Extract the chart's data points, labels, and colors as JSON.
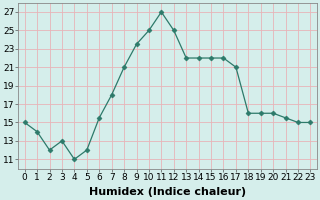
{
  "x": [
    0,
    1,
    2,
    3,
    4,
    5,
    6,
    7,
    8,
    9,
    10,
    11,
    12,
    13,
    14,
    15,
    16,
    17,
    18,
    19,
    20,
    21,
    22,
    23
  ],
  "y": [
    15,
    14,
    12,
    13,
    11,
    12,
    15.5,
    18,
    21,
    23.5,
    25,
    27,
    25,
    22,
    22,
    22,
    22,
    21,
    16,
    16,
    16,
    15.5,
    15,
    15
  ],
  "line_color": "#2d7a6a",
  "marker": "D",
  "marker_size": 2.5,
  "bg_color": "#d5eeeb",
  "grid_color": "#e8b4b8",
  "xlabel": "Humidex (Indice chaleur)",
  "ylim": [
    10,
    28
  ],
  "xlim": [
    -0.5,
    23.5
  ],
  "yticks": [
    11,
    13,
    15,
    17,
    19,
    21,
    23,
    25,
    27
  ],
  "xticks": [
    0,
    1,
    2,
    3,
    4,
    5,
    6,
    7,
    8,
    9,
    10,
    11,
    12,
    13,
    14,
    15,
    16,
    17,
    18,
    19,
    20,
    21,
    22,
    23
  ],
  "xtick_labels": [
    "0",
    "1",
    "2",
    "3",
    "4",
    "5",
    "6",
    "7",
    "8",
    "9",
    "10",
    "11",
    "12",
    "13",
    "14",
    "15",
    "16",
    "17",
    "18",
    "19",
    "20",
    "21",
    "22",
    "23"
  ],
  "xlabel_fontsize": 8,
  "tick_fontsize": 6.5
}
